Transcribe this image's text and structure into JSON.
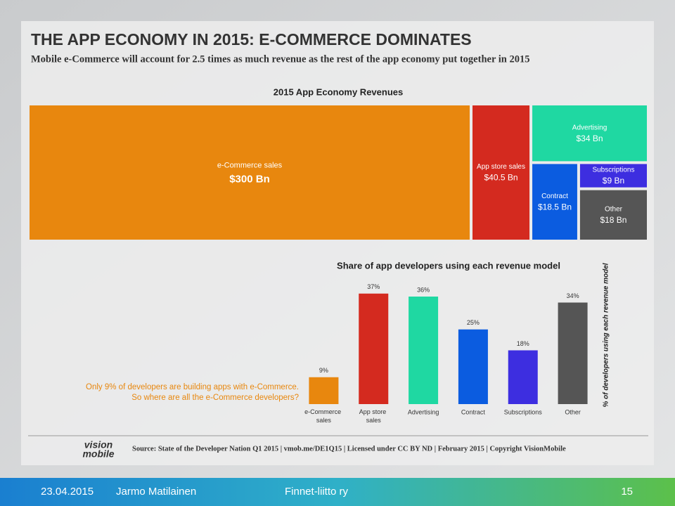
{
  "slide": {
    "title": "THE APP ECONOMY IN 2015: E-COMMERCE DOMINATES",
    "subtitle": "Mobile e-Commerce will account for 2.5 times as much revenue as the rest of the app economy put together in 2015",
    "annotation": [
      "Only 9% of developers are building apps with e-Commerce.",
      "So where are all the e-Commerce developers?"
    ],
    "logo": [
      "vision",
      "mobile"
    ],
    "source": "Source: State of the Developer Nation Q1 2015 | vmob.me/DE1Q15 | Licensed under CC BY ND | February 2015 | Copyright VisionMobile",
    "footer": {
      "date": "23.04.2015",
      "author": "Jarmo Matilainen",
      "org": "Finnet-liitto ry",
      "page": "15"
    }
  },
  "chart_data": [
    {
      "type": "treemap",
      "title": "2015 App Economy Revenues",
      "categories": [
        "e-Commerce sales",
        "App store sales",
        "Advertising",
        "Contract",
        "Subscriptions",
        "Other"
      ],
      "values": [
        300,
        40.5,
        34,
        18.5,
        9,
        18
      ],
      "value_labels": [
        "$300 Bn",
        "$40.5 Bn",
        "$34 Bn",
        "$18.5 Bn",
        "$9 Bn",
        "$18 Bn"
      ],
      "colors": [
        "#e8870e",
        "#d42a1f",
        "#1fd8a2",
        "#0b5ce0",
        "#3d2ee0",
        "#555555"
      ]
    },
    {
      "type": "bar",
      "title": "Share of app developers using each revenue model",
      "ylabel": "% of developers using each revenue model",
      "categories": [
        "e-Commerce sales",
        "App store sales",
        "Advertising",
        "Contract",
        "Subscriptions",
        "Other"
      ],
      "values": [
        9,
        37,
        36,
        25,
        18,
        34
      ],
      "value_labels": [
        "9%",
        "37%",
        "36%",
        "25%",
        "18%",
        "34%"
      ],
      "colors": [
        "#e8870e",
        "#d42a1f",
        "#1fd8a2",
        "#0b5ce0",
        "#3d2ee0",
        "#555555"
      ],
      "ylim": [
        0,
        40
      ]
    }
  ]
}
